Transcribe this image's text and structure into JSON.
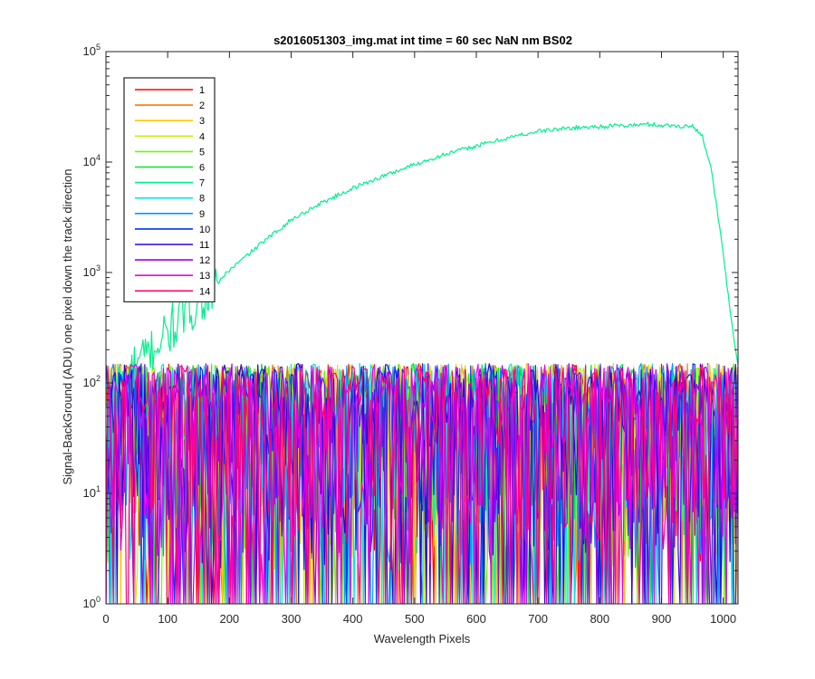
{
  "chart_data": {
    "type": "line",
    "title": "s2016051303_img.mat int time = 60 sec  NaN nm BS02",
    "xlabel": "Wavelength Pixels",
    "ylabel": "Signal-BackGround (ADU) one pixel down the track direction",
    "xlim": [
      0,
      1024
    ],
    "ylim": [
      1,
      100000
    ],
    "yscale": "log",
    "x_ticks": [
      "0",
      "100",
      "200",
      "300",
      "400",
      "500",
      "600",
      "700",
      "800",
      "900",
      "1000"
    ],
    "x_tick_values": [
      0,
      100,
      200,
      300,
      400,
      500,
      600,
      700,
      800,
      900,
      1000
    ],
    "y_ticks": [
      {
        "value": 1,
        "base": "10",
        "exp": "0"
      },
      {
        "value": 10,
        "base": "10",
        "exp": "1"
      },
      {
        "value": 100,
        "base": "10",
        "exp": "2"
      },
      {
        "value": 1000,
        "base": "10",
        "exp": "3"
      },
      {
        "value": 10000,
        "base": "10",
        "exp": "4"
      },
      {
        "value": 100000,
        "base": "10",
        "exp": "5"
      }
    ],
    "grid": false,
    "legend_position": "top-left",
    "series": [
      {
        "name": "1",
        "color": "#ff0000",
        "kind": "noise"
      },
      {
        "name": "2",
        "color": "#ff7700",
        "kind": "noise"
      },
      {
        "name": "3",
        "color": "#ffcc00",
        "kind": "noise"
      },
      {
        "name": "4",
        "color": "#ccee00",
        "kind": "noise"
      },
      {
        "name": "5",
        "color": "#66ff00",
        "kind": "noise"
      },
      {
        "name": "6",
        "color": "#00ee22",
        "kind": "noise"
      },
      {
        "name": "7",
        "color": "#00f08c",
        "kind": "signal",
        "points": [
          [
            0,
            80
          ],
          [
            20,
            90
          ],
          [
            40,
            120
          ],
          [
            60,
            160
          ],
          [
            80,
            220
          ],
          [
            100,
            280
          ],
          [
            120,
            380
          ],
          [
            150,
            560
          ],
          [
            180,
            800
          ],
          [
            200,
            1050
          ],
          [
            250,
            1800
          ],
          [
            300,
            3000
          ],
          [
            350,
            4300
          ],
          [
            400,
            5800
          ],
          [
            450,
            7500
          ],
          [
            500,
            9500
          ],
          [
            550,
            11800
          ],
          [
            600,
            14000
          ],
          [
            650,
            16500
          ],
          [
            700,
            19000
          ],
          [
            750,
            20300
          ],
          [
            800,
            21000
          ],
          [
            850,
            21500
          ],
          [
            880,
            22000
          ],
          [
            900,
            21500
          ],
          [
            930,
            21200
          ],
          [
            950,
            21000
          ],
          [
            965,
            18000
          ],
          [
            980,
            9000
          ],
          [
            1000,
            1500
          ],
          [
            1010,
            500
          ],
          [
            1020,
            200
          ],
          [
            1024,
            150
          ]
        ]
      },
      {
        "name": "8",
        "color": "#00e6e6",
        "kind": "noise"
      },
      {
        "name": "9",
        "color": "#0099ff",
        "kind": "noise"
      },
      {
        "name": "10",
        "color": "#0033ee",
        "kind": "noise"
      },
      {
        "name": "11",
        "color": "#3300dd",
        "kind": "noise"
      },
      {
        "name": "12",
        "color": "#9900ee",
        "kind": "noise"
      },
      {
        "name": "13",
        "color": "#ee00ee",
        "kind": "noise"
      },
      {
        "name": "14",
        "color": "#ff0077",
        "kind": "noise"
      }
    ],
    "noise_band": {
      "typical_min": 2,
      "typical_max": 150
    }
  }
}
